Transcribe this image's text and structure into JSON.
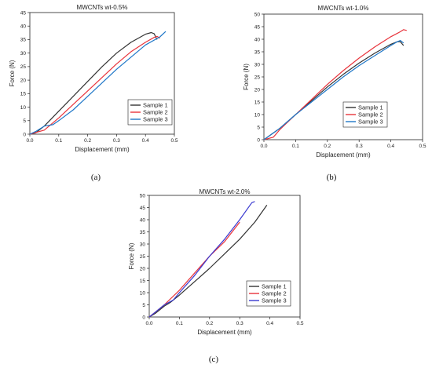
{
  "chart_data": [
    {
      "type": "line",
      "panel_label": "(a)",
      "title": "MWCNTs wt-0.5%",
      "xlabel": "Displacement (mm)",
      "ylabel": "Force (N)",
      "xlim": [
        0,
        0.5
      ],
      "ylim": [
        0,
        45
      ],
      "x_ticks": [
        "0.0",
        "0.1",
        "0.2",
        "0.3",
        "0.4",
        "0.5"
      ],
      "y_ticks": [
        "0",
        "5",
        "10",
        "15",
        "20",
        "25",
        "30",
        "35",
        "40",
        "45"
      ],
      "legend_position": "bottom-right",
      "series": [
        {
          "name": "Sample 1",
          "color": "#333333",
          "points": [
            [
              0.0,
              0.0
            ],
            [
              0.02,
              0.5
            ],
            [
              0.05,
              3.0
            ],
            [
              0.1,
              8.5
            ],
            [
              0.15,
              14.0
            ],
            [
              0.2,
              19.5
            ],
            [
              0.25,
              25.0
            ],
            [
              0.3,
              30.0
            ],
            [
              0.35,
              34.0
            ],
            [
              0.4,
              37.0
            ],
            [
              0.42,
              37.6
            ],
            [
              0.43,
              37.2
            ],
            [
              0.44,
              35.0
            ]
          ]
        },
        {
          "name": "Sample 2",
          "color": "#e8343c",
          "points": [
            [
              0.0,
              0.0
            ],
            [
              0.05,
              1.5
            ],
            [
              0.1,
              6.0
            ],
            [
              0.15,
              11.0
            ],
            [
              0.2,
              16.0
            ],
            [
              0.25,
              21.0
            ],
            [
              0.3,
              26.0
            ],
            [
              0.35,
              30.5
            ],
            [
              0.4,
              34.0
            ],
            [
              0.43,
              35.8
            ],
            [
              0.44,
              36.2
            ],
            [
              0.45,
              35.5
            ]
          ]
        },
        {
          "name": "Sample 3",
          "color": "#1f77c8",
          "points": [
            [
              0.0,
              0.0
            ],
            [
              0.02,
              1.0
            ],
            [
              0.05,
              3.0
            ],
            [
              0.08,
              3.5
            ],
            [
              0.1,
              5.0
            ],
            [
              0.15,
              9.0
            ],
            [
              0.2,
              14.0
            ],
            [
              0.25,
              19.0
            ],
            [
              0.3,
              24.0
            ],
            [
              0.35,
              28.5
            ],
            [
              0.4,
              33.0
            ],
            [
              0.45,
              36.0
            ],
            [
              0.47,
              38.0
            ]
          ]
        }
      ]
    },
    {
      "type": "line",
      "panel_label": "(b)",
      "title": "MWCNTs wt-1.0%",
      "xlabel": "Displacement (mm)",
      "ylabel": "Force (N)",
      "xlim": [
        0,
        0.5
      ],
      "ylim": [
        0,
        50
      ],
      "x_ticks": [
        "0.0",
        "0.1",
        "0.2",
        "0.3",
        "0.4",
        "0.5"
      ],
      "y_ticks": [
        "0",
        "5",
        "10",
        "15",
        "20",
        "25",
        "30",
        "35",
        "40",
        "45",
        "50"
      ],
      "legend_position": "bottom-right",
      "series": [
        {
          "name": "Sample 1",
          "color": "#333333",
          "points": [
            [
              0.0,
              0.0
            ],
            [
              0.05,
              4.5
            ],
            [
              0.1,
              10.0
            ],
            [
              0.15,
              15.5
            ],
            [
              0.2,
              21.0
            ],
            [
              0.25,
              26.0
            ],
            [
              0.3,
              30.5
            ],
            [
              0.35,
              34.5
            ],
            [
              0.4,
              38.0
            ],
            [
              0.42,
              39.0
            ],
            [
              0.43,
              39.0
            ],
            [
              0.44,
              37.5
            ]
          ]
        },
        {
          "name": "Sample 2",
          "color": "#e8343c",
          "points": [
            [
              0.0,
              0.0
            ],
            [
              0.03,
              1.0
            ],
            [
              0.05,
              4.0
            ],
            [
              0.1,
              10.0
            ],
            [
              0.15,
              16.0
            ],
            [
              0.2,
              22.0
            ],
            [
              0.25,
              27.5
            ],
            [
              0.3,
              32.5
            ],
            [
              0.35,
              37.0
            ],
            [
              0.4,
              41.0
            ],
            [
              0.43,
              43.0
            ],
            [
              0.44,
              43.8
            ],
            [
              0.45,
              43.5
            ]
          ]
        },
        {
          "name": "Sample 3",
          "color": "#1f77c8",
          "points": [
            [
              0.0,
              0.0
            ],
            [
              0.05,
              4.5
            ],
            [
              0.1,
              10.0
            ],
            [
              0.15,
              15.0
            ],
            [
              0.2,
              20.0
            ],
            [
              0.25,
              25.0
            ],
            [
              0.3,
              29.5
            ],
            [
              0.35,
              33.5
            ],
            [
              0.4,
              37.5
            ],
            [
              0.42,
              39.0
            ],
            [
              0.43,
              39.5
            ],
            [
              0.44,
              38.5
            ]
          ]
        }
      ]
    },
    {
      "type": "line",
      "panel_label": "(c)",
      "title": "MWCNTs wt-2.0%",
      "xlabel": "Displacement (mm)",
      "ylabel": "Force (N)",
      "xlim": [
        0,
        0.5
      ],
      "ylim": [
        0,
        50
      ],
      "x_ticks": [
        "0.0",
        "0.1",
        "0.2",
        "0.3",
        "0.4",
        "0.5"
      ],
      "y_ticks": [
        "0",
        "5",
        "10",
        "15",
        "20",
        "25",
        "30",
        "35",
        "40",
        "45",
        "50"
      ],
      "legend_position": "bottom-right",
      "series": [
        {
          "name": "Sample 1",
          "color": "#333333",
          "points": [
            [
              0.0,
              0.0
            ],
            [
              0.02,
              1.5
            ],
            [
              0.05,
              4.5
            ],
            [
              0.07,
              6.0
            ],
            [
              0.1,
              9.0
            ],
            [
              0.15,
              14.5
            ],
            [
              0.2,
              20.0
            ],
            [
              0.25,
              26.0
            ],
            [
              0.3,
              32.0
            ],
            [
              0.35,
              39.0
            ],
            [
              0.39,
              46.0
            ]
          ]
        },
        {
          "name": "Sample 2",
          "color": "#e8343c",
          "points": [
            [
              0.0,
              0.0
            ],
            [
              0.02,
              2.0
            ],
            [
              0.05,
              5.0
            ],
            [
              0.1,
              11.0
            ],
            [
              0.15,
              18.0
            ],
            [
              0.2,
              25.0
            ],
            [
              0.25,
              31.0
            ],
            [
              0.3,
              39.0
            ]
          ]
        },
        {
          "name": "Sample 3",
          "color": "#3a3ad0",
          "points": [
            [
              0.0,
              0.0
            ],
            [
              0.02,
              2.0
            ],
            [
              0.05,
              5.0
            ],
            [
              0.08,
              7.0
            ],
            [
              0.1,
              10.0
            ],
            [
              0.15,
              17.0
            ],
            [
              0.2,
              25.0
            ],
            [
              0.25,
              32.0
            ],
            [
              0.3,
              40.0
            ],
            [
              0.34,
              47.0
            ],
            [
              0.35,
              47.5
            ]
          ]
        }
      ]
    }
  ]
}
